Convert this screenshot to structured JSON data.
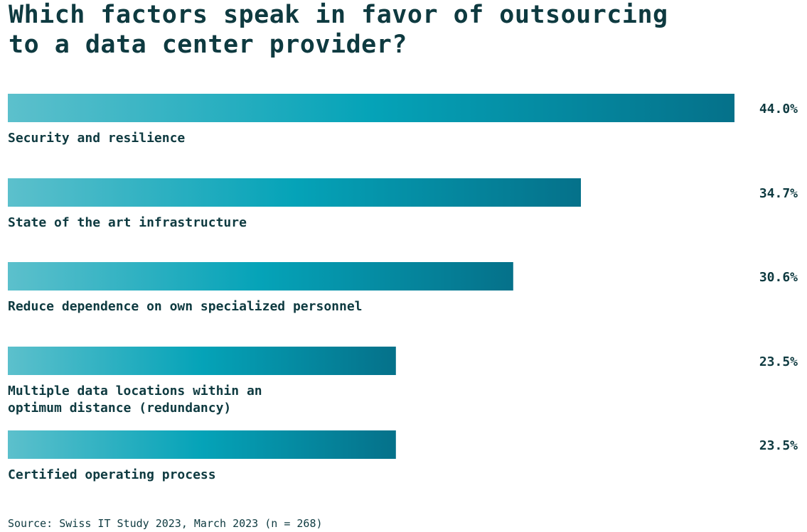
{
  "title": "Which factors speak in favor of outsourcing\nto a data center provider?",
  "source": "Source: Swiss IT Study 2023, March 2023 (n = 268)",
  "colors": {
    "bar_gradient_start": "#5cc0cc",
    "bar_gradient_mid": "#05a3b8",
    "bar_gradient_end": "#05718a",
    "text": "#0e3a40"
  },
  "chart_data": {
    "type": "bar",
    "orientation": "horizontal",
    "title": "Which factors speak in favor of outsourcing to a data center provider?",
    "categories": [
      "Security and resilience",
      "State of the art infrastructure",
      "Reduce dependence on own specialized personnel",
      "Multiple data locations within an optimum distance (redundancy)",
      "Certified operating process"
    ],
    "category_lines": [
      [
        "Security and resilience"
      ],
      [
        "State of the art infrastructure"
      ],
      [
        "Reduce dependence on own specialized personnel"
      ],
      [
        "Multiple data locations within an",
        "optimum distance (redundancy)"
      ],
      [
        "Certified operating process"
      ]
    ],
    "values": [
      44.0,
      34.7,
      30.6,
      23.5,
      23.5
    ],
    "value_labels": [
      "44.0%",
      "34.7%",
      "30.6%",
      "23.5%",
      "23.5%"
    ],
    "unit": "%",
    "xlim": [
      0,
      44.0
    ],
    "grid": false,
    "legend": "none"
  }
}
